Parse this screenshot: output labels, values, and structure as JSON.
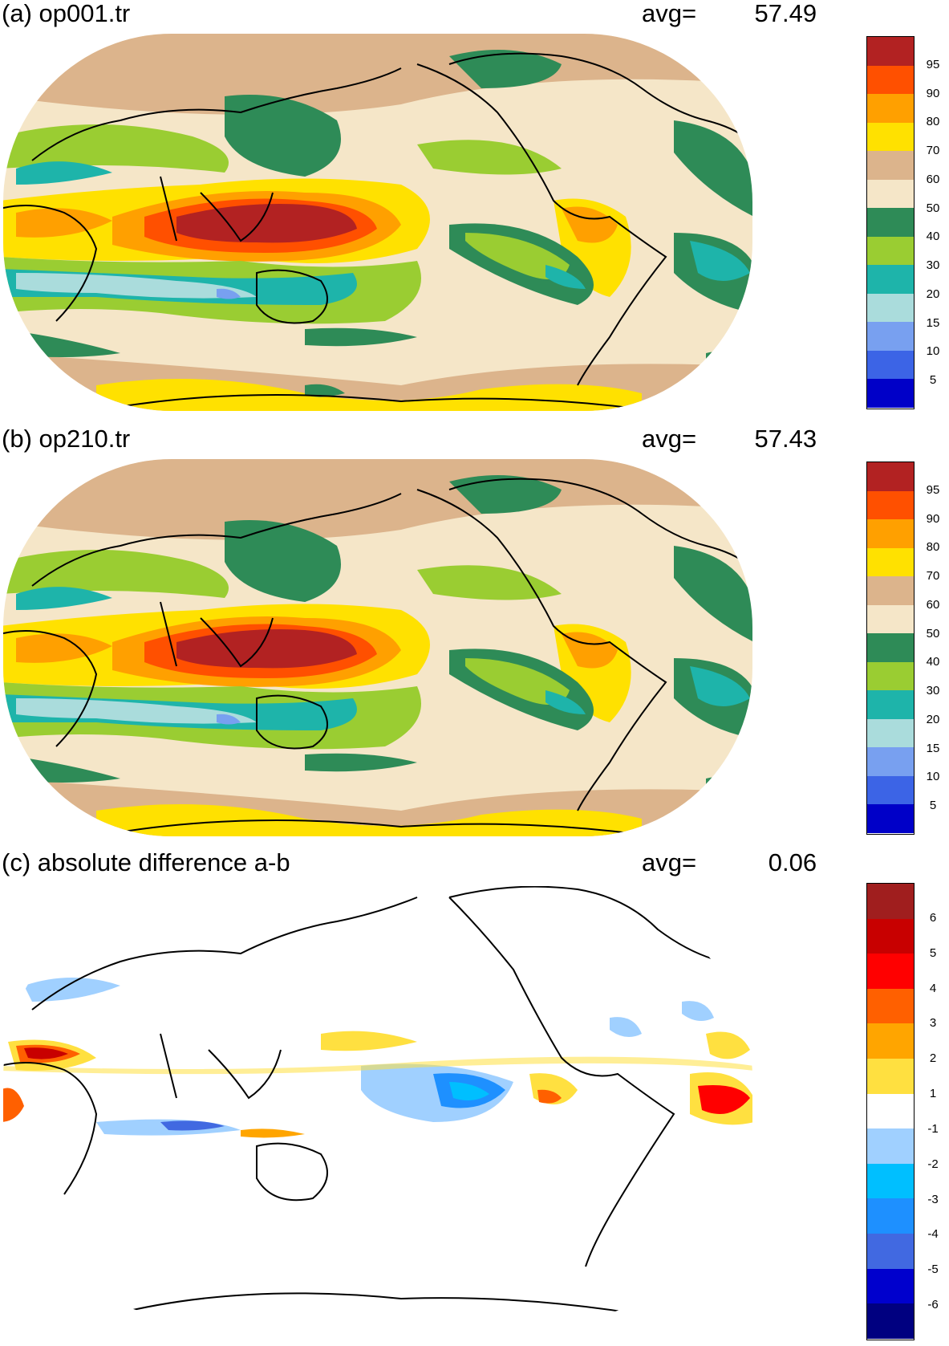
{
  "panels": [
    {
      "id": "a",
      "title": "(a) op001.tr",
      "avg_label": "avg=",
      "avg_value": "57.49",
      "colorbar": {
        "colors": [
          "#0000c8",
          "#3c64e6",
          "#78a0f0",
          "#aadcdc",
          "#1eb4aa",
          "#9acd32",
          "#2e8b57",
          "#f5e6c8",
          "#dcb48c",
          "#ffe100",
          "#ffa000",
          "#ff5000",
          "#b22222"
        ],
        "labels": [
          "5",
          "10",
          "15",
          "20",
          "30",
          "40",
          "50",
          "60",
          "70",
          "80",
          "90",
          "95"
        ]
      }
    },
    {
      "id": "b",
      "title": "(b) op210.tr",
      "avg_label": "avg=",
      "avg_value": "57.43",
      "colorbar": {
        "colors": [
          "#0000c8",
          "#3c64e6",
          "#78a0f0",
          "#aadcdc",
          "#1eb4aa",
          "#9acd32",
          "#2e8b57",
          "#f5e6c8",
          "#dcb48c",
          "#ffe100",
          "#ffa000",
          "#ff5000",
          "#b22222"
        ],
        "labels": [
          "5",
          "10",
          "15",
          "20",
          "30",
          "40",
          "50",
          "60",
          "70",
          "80",
          "90",
          "95"
        ]
      }
    },
    {
      "id": "c",
      "title": "(c) absolute difference a-b",
      "avg_label": "avg=",
      "avg_value": "0.06",
      "colorbar": {
        "colors": [
          "#000080",
          "#0000cd",
          "#4169e1",
          "#1e90ff",
          "#00bfff",
          "#a0d0ff",
          "#ffffff",
          "#ffe040",
          "#ffa500",
          "#ff6000",
          "#ff0000",
          "#c80000",
          "#a01e1e"
        ],
        "labels": [
          "-6",
          "-5",
          "-4",
          "-3",
          "-2",
          "-1",
          "1",
          "2",
          "3",
          "4",
          "5",
          "6"
        ]
      }
    }
  ]
}
